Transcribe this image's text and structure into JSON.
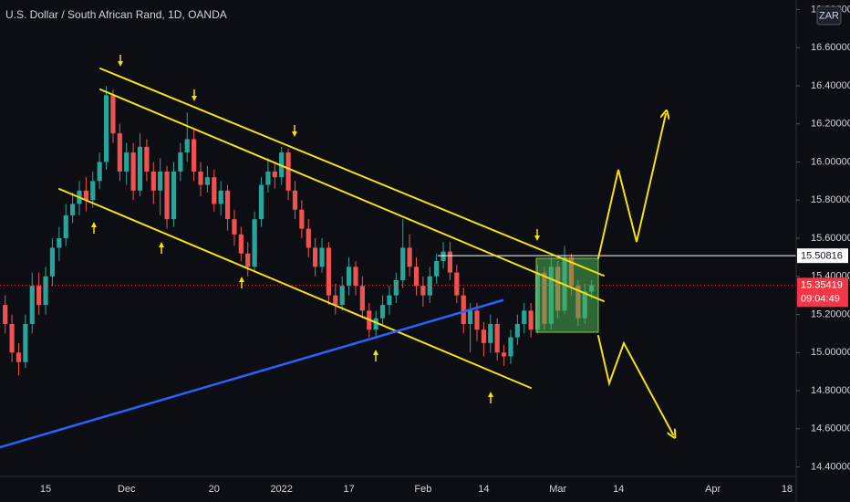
{
  "chart_data": {
    "type": "candlestick",
    "title": "U.S. Dollar / South African Rand, 1D, OANDA",
    "currency": "ZAR",
    "countdown": "09:04:49",
    "up_color": "#26a69a",
    "down_color": "#ef5350",
    "hline": 15.50816,
    "hline_color": "#ffffff",
    "last_price_color": "#f23645",
    "categories": [
      null,
      null,
      null,
      null,
      null,
      null,
      "15",
      null,
      null,
      null,
      null,
      null,
      null,
      null,
      null,
      null,
      null,
      null,
      "Dec",
      null,
      null,
      null,
      null,
      null,
      null,
      null,
      null,
      null,
      null,
      null,
      null,
      "20",
      null,
      null,
      null,
      null,
      null,
      null,
      null,
      null,
      null,
      "2022",
      null,
      null,
      null,
      null,
      null,
      null,
      null,
      null,
      null,
      "17",
      null,
      null,
      null,
      null,
      null,
      null,
      null,
      null,
      null,
      null,
      "Feb",
      null,
      null,
      null,
      null,
      null,
      null,
      null,
      null,
      "14",
      null,
      null,
      null,
      null,
      null,
      null,
      null,
      null,
      null,
      null,
      "Mar",
      null,
      null,
      null,
      null,
      null,
      null,
      null,
      null,
      "14",
      null,
      null,
      null,
      null,
      null,
      null,
      null,
      null,
      null,
      null,
      null,
      null,
      null,
      "Apr",
      null,
      null,
      null,
      null,
      null,
      null,
      null,
      null,
      null,
      null,
      "18"
    ],
    "open": [
      15.25,
      15.15,
      15.0,
      14.95,
      15.15,
      15.35,
      15.25,
      15.4,
      15.55,
      15.6,
      15.72,
      15.78,
      15.85,
      15.8,
      15.9,
      16.0,
      16.35,
      16.15,
      15.95,
      16.05,
      15.85,
      16.08,
      15.95,
      15.85,
      15.95,
      15.7,
      15.95,
      16.05,
      16.12,
      15.95,
      15.88,
      15.92,
      15.78,
      15.85,
      15.7,
      15.62,
      15.52,
      15.45,
      15.7,
      15.88,
      15.95,
      15.92,
      16.05,
      15.85,
      15.75,
      15.65,
      15.55,
      15.45,
      15.55,
      15.3,
      15.25,
      15.35,
      15.45,
      15.35,
      15.22,
      15.12,
      15.18,
      15.25,
      15.3,
      15.38,
      15.55,
      15.45,
      15.35,
      15.3,
      15.4,
      15.48,
      15.53,
      15.42,
      15.3,
      15.15,
      15.22,
      15.12,
      15.05,
      15.15,
      15.0,
      14.98,
      15.08,
      15.15,
      15.22,
      15.12,
      15.42,
      15.15,
      15.45,
      15.22,
      15.5,
      15.35,
      15.18,
      15.32,
      null,
      null,
      null,
      null,
      null,
      null,
      null,
      null,
      null,
      null,
      null,
      null,
      null,
      null,
      null,
      null,
      null,
      null,
      null,
      null,
      null,
      null,
      null,
      null,
      null,
      null,
      null,
      null,
      null
    ],
    "high": [
      15.3,
      15.2,
      15.05,
      15.2,
      15.42,
      15.42,
      15.45,
      15.6,
      15.66,
      15.78,
      15.84,
      15.9,
      15.92,
      15.95,
      16.05,
      16.4,
      16.38,
      16.2,
      16.1,
      16.1,
      16.15,
      16.12,
      16.0,
      16.02,
      15.98,
      16.0,
      16.1,
      16.26,
      16.18,
      16.0,
      15.98,
      15.96,
      15.9,
      15.88,
      15.75,
      15.66,
      15.58,
      15.74,
      15.92,
      16.02,
      16.0,
      16.08,
      16.07,
      15.9,
      15.8,
      15.7,
      15.6,
      15.6,
      15.58,
      15.36,
      15.4,
      15.5,
      15.48,
      15.4,
      15.26,
      15.22,
      15.3,
      15.35,
      15.42,
      15.7,
      15.62,
      15.5,
      15.4,
      15.45,
      15.52,
      15.58,
      15.58,
      15.46,
      15.34,
      15.26,
      15.26,
      15.16,
      15.2,
      15.18,
      15.04,
      15.12,
      15.2,
      15.26,
      15.26,
      15.46,
      15.45,
      15.5,
      15.48,
      15.56,
      15.52,
      15.38,
      15.36,
      15.38,
      null,
      null,
      null,
      null,
      null,
      null,
      null,
      null,
      null,
      null,
      null,
      null,
      null,
      null,
      null,
      null,
      null,
      null,
      null,
      null,
      null,
      null,
      null,
      null,
      null,
      null,
      null,
      null,
      null
    ],
    "low": [
      15.1,
      14.95,
      14.88,
      14.92,
      15.1,
      15.2,
      15.2,
      15.35,
      15.48,
      15.56,
      15.68,
      15.72,
      15.74,
      15.76,
      15.86,
      15.96,
      16.1,
      15.9,
      15.88,
      15.8,
      15.82,
      15.9,
      15.78,
      15.72,
      15.65,
      15.66,
      15.9,
      16.0,
      15.9,
      15.82,
      15.84,
      15.74,
      15.72,
      15.64,
      15.56,
      15.48,
      15.4,
      15.42,
      15.66,
      15.84,
      15.86,
      15.88,
      15.8,
      15.7,
      15.6,
      15.5,
      15.4,
      15.42,
      15.25,
      15.2,
      15.22,
      15.3,
      15.3,
      15.18,
      15.08,
      15.08,
      15.14,
      15.2,
      15.26,
      15.34,
      15.4,
      15.3,
      15.24,
      15.26,
      15.36,
      15.44,
      15.38,
      15.26,
      15.1,
      15.0,
      15.06,
      14.98,
      15.0,
      14.96,
      14.93,
      14.94,
      15.04,
      15.1,
      15.08,
      15.1,
      15.12,
      15.12,
      15.18,
      15.2,
      15.3,
      15.14,
      15.15,
      15.28,
      null,
      null,
      null,
      null,
      null,
      null,
      null,
      null,
      null,
      null,
      null,
      null,
      null,
      null,
      null,
      null,
      null,
      null,
      null,
      null,
      null,
      null,
      null,
      null,
      null,
      null,
      null,
      null,
      null
    ],
    "close": [
      15.15,
      15.0,
      14.95,
      15.15,
      15.35,
      15.25,
      15.4,
      15.55,
      15.6,
      15.72,
      15.78,
      15.85,
      15.8,
      15.9,
      16.0,
      16.35,
      16.15,
      15.95,
      16.05,
      15.85,
      16.08,
      15.95,
      15.85,
      15.95,
      15.7,
      15.95,
      16.05,
      16.12,
      15.95,
      15.88,
      15.92,
      15.78,
      15.85,
      15.7,
      15.62,
      15.52,
      15.45,
      15.7,
      15.88,
      15.95,
      15.92,
      16.05,
      15.85,
      15.75,
      15.65,
      15.55,
      15.45,
      15.55,
      15.3,
      15.25,
      15.35,
      15.45,
      15.35,
      15.22,
      15.12,
      15.18,
      15.25,
      15.3,
      15.38,
      15.55,
      15.45,
      15.35,
      15.3,
      15.4,
      15.48,
      15.53,
      15.42,
      15.3,
      15.15,
      15.22,
      15.12,
      15.05,
      15.15,
      15.0,
      14.98,
      15.08,
      15.15,
      15.22,
      15.12,
      15.42,
      15.15,
      15.45,
      15.22,
      15.5,
      15.35,
      15.18,
      15.32,
      15.35419,
      null,
      null,
      null,
      null,
      null,
      null,
      null,
      null,
      null,
      null,
      null,
      null,
      null,
      null,
      null,
      null,
      null,
      null,
      null,
      null,
      null,
      null,
      null,
      null,
      null,
      null,
      null,
      null,
      null
    ],
    "ylim": [
      14.35,
      16.85
    ],
    "yticks": [
      {
        "value": 14.4,
        "label": "14.40000"
      },
      {
        "value": 14.6,
        "label": "14.60000"
      },
      {
        "value": 14.8,
        "label": "14.80000"
      },
      {
        "value": 15.0,
        "label": "15.00000"
      },
      {
        "value": 15.2,
        "label": "15.20000"
      },
      {
        "value": 15.4,
        "label": "15.40000"
      },
      {
        "value": 15.6,
        "label": "15.60000"
      },
      {
        "value": 15.8,
        "label": "15.80000"
      },
      {
        "value": 16.0,
        "label": "16.00000"
      },
      {
        "value": 16.2,
        "label": "16.20000"
      },
      {
        "value": 16.4,
        "label": "16.40000"
      },
      {
        "value": 16.6,
        "label": "16.60000"
      },
      {
        "value": 16.8,
        "label": "16.80000"
      }
    ]
  }
}
